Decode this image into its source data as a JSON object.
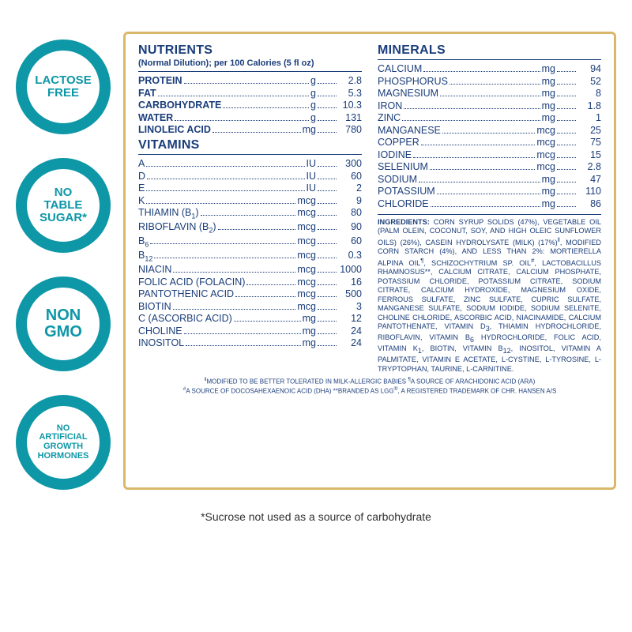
{
  "badges": [
    {
      "lines": "LACTOSE<br>FREE",
      "cls": "b1"
    },
    {
      "lines": "NO<br>TABLE<br>SUGAR*",
      "cls": "b2"
    },
    {
      "lines": "NON<br>GMO",
      "cls": "b3"
    },
    {
      "lines": "NO<br>ARTIFICIAL<br>GROWTH<br>HORMONES",
      "cls": "b4"
    }
  ],
  "headings": {
    "nutrients": "NUTRIENTS",
    "dilution": "(Normal Dilution); per 100 Calories (5 fl oz)",
    "vitamins": "VITAMINS",
    "minerals": "MINERALS"
  },
  "nutrients": [
    {
      "name": "PROTEIN",
      "unit": "g",
      "val": "2.8",
      "bold": true
    },
    {
      "name": "FAT",
      "unit": "g",
      "val": "5.3",
      "bold": true
    },
    {
      "name": "CARBOHYDRATE",
      "unit": "g",
      "val": "10.3",
      "bold": true
    },
    {
      "name": "WATER",
      "unit": "g",
      "val": "131",
      "bold": true
    },
    {
      "name": "LINOLEIC ACID",
      "unit": "mg",
      "val": "780",
      "bold": true
    }
  ],
  "vitamins": [
    {
      "name": "A",
      "unit": "IU",
      "val": "300"
    },
    {
      "name": "D",
      "unit": "IU",
      "val": "60"
    },
    {
      "name": "E",
      "unit": "IU",
      "val": "2"
    },
    {
      "name": "K",
      "unit": "mcg",
      "val": "9"
    },
    {
      "name": "THIAMIN (B<span class=\"sub\">1</span>)",
      "unit": "mcg",
      "val": "80"
    },
    {
      "name": "RIBOFLAVIN (B<span class=\"sub\">2</span>)",
      "unit": "mcg",
      "val": "90"
    },
    {
      "name": "B<span class=\"sub\">6</span>",
      "unit": "mcg",
      "val": "60"
    },
    {
      "name": "B<span class=\"sub\">12</span>",
      "unit": "mcg",
      "val": "0.3"
    },
    {
      "name": "NIACIN",
      "unit": "mcg",
      "val": "1000"
    },
    {
      "name": "FOLIC ACID (FOLACIN)",
      "unit": "mcg",
      "val": "16"
    },
    {
      "name": "PANTOTHENIC ACID",
      "unit": "mcg",
      "val": "500"
    },
    {
      "name": "BIOTIN",
      "unit": "mcg",
      "val": "3"
    },
    {
      "name": "C (ASCORBIC ACID)",
      "unit": "mg",
      "val": "12"
    },
    {
      "name": "CHOLINE",
      "unit": "mg",
      "val": "24"
    },
    {
      "name": "INOSITOL",
      "unit": "mg",
      "val": "24"
    }
  ],
  "minerals": [
    {
      "name": "CALCIUM",
      "unit": "mg",
      "val": "94"
    },
    {
      "name": "PHOSPHORUS",
      "unit": "mg",
      "val": "52"
    },
    {
      "name": "MAGNESIUM",
      "unit": "mg",
      "val": "8"
    },
    {
      "name": "IRON",
      "unit": "mg",
      "val": "1.8"
    },
    {
      "name": "ZINC",
      "unit": "mg",
      "val": "1"
    },
    {
      "name": "MANGANESE",
      "unit": "mcg",
      "val": "25"
    },
    {
      "name": "COPPER",
      "unit": "mcg",
      "val": "75"
    },
    {
      "name": "IODINE",
      "unit": "mcg",
      "val": "15"
    },
    {
      "name": "SELENIUM",
      "unit": "mcg",
      "val": "2.8"
    },
    {
      "name": "SODIUM",
      "unit": "mg",
      "val": "47"
    },
    {
      "name": "POTASSIUM",
      "unit": "mg",
      "val": "110"
    },
    {
      "name": "CHLORIDE",
      "unit": "mg",
      "val": "86"
    }
  ],
  "ingredients_label": "INGREDIENTS:",
  "ingredients_body": " CORN SYRUP SOLIDS (47%), VEGETABLE OIL (PALM OLEIN, COCONUT, SOY, AND HIGH OLEIC SUNFLOWER OILS) (26%), CASEIN HYDROLYSATE (MILK) (17%)<sup>‖</sup>, MODIFIED CORN STARCH (4%), AND LESS THAN 2%: MORTIERELLA ALPINA OIL<sup>¶</sup>, SCHIZOCHYTRIUM SP. OIL<sup>#</sup>, LACTOBACILLUS RHAMNOSUS**, CALCIUM CITRATE, CALCIUM PHOSPHATE, POTASSIUM CHLORIDE, POTASSIUM CITRATE, SODIUM CITRATE, CALCIUM HYDROXIDE, MAGNESIUM OXIDE, FERROUS SULFATE, ZINC SULFATE, CUPRIC SULFATE, MANGANESE SULFATE, SODIUM IODIDE, SODIUM SELENITE, CHOLINE CHLORIDE, ASCORBIC ACID, NIACINAMIDE, CALCIUM PANTOTHENATE, VITAMIN D<span class=\"sub\">3</span>, THIAMIN HYDROCHLORIDE, RIBOFLAVIN, VITAMIN B<span class=\"sub\">6</span> HYDROCHLORIDE, FOLIC ACID, VITAMIN K<span class=\"sub\">1</span>, BIOTIN, VITAMIN B<span class=\"sub\">12</span>, INOSITOL, VITAMIN A PALMITATE, VITAMIN E ACETATE, L-CYSTINE, L-TYROSINE, L-TRYPTOPHAN, TAURINE, L-CARNITINE.",
  "footnote1": "<sup>‖</sup>MODIFIED TO BE BETTER TOLERATED IN MILK-ALLERGIC BABIES <sup>¶</sup>A SOURCE OF ARACHIDONIC ACID (ARA)",
  "footnote2": "<sup>#</sup>A SOURCE OF DOCOSAHEXAENOIC ACID (DHA) **BRANDED AS LGG<sup>®</sup>, A REGISTERED TRADEMARK OF CHR. HANSEN A/S",
  "sucrose": "*Sucrose not used as a source of carbohydrate",
  "colors": {
    "badge_ring": "#0d97a7",
    "text": "#1a3d7a",
    "border": "#d9b86a",
    "bg": "#ffffff"
  }
}
